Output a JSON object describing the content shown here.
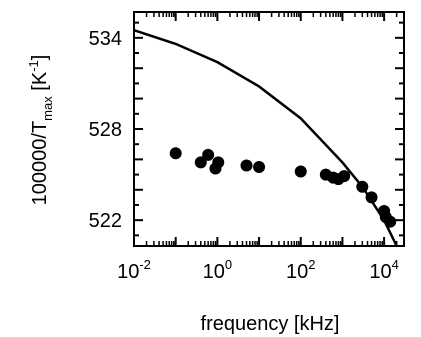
{
  "chart_data": {
    "type": "scatter",
    "xlabel": "frequency [kHz]",
    "ylabel_main": "100000/T",
    "ylabel_sub": "max",
    "ylabel_unit_open": " [K",
    "ylabel_unit_sup": "-1",
    "ylabel_unit_close": "]",
    "xscale": "log",
    "xlim": [
      0.01,
      30000
    ],
    "ylim": [
      520.3,
      535.7
    ],
    "grid": false,
    "x_ticks": [
      {
        "value": 0.01,
        "base": "10",
        "exp": "-2"
      },
      {
        "value": 1,
        "base": "10",
        "exp": "0"
      },
      {
        "value": 100,
        "base": "10",
        "exp": "2"
      },
      {
        "value": 10000,
        "base": "10",
        "exp": "4"
      }
    ],
    "y_ticks": [
      {
        "value": 522,
        "label": "522"
      },
      {
        "value": 528,
        "label": "528"
      },
      {
        "value": 534,
        "label": "534"
      }
    ],
    "series": [
      {
        "kind": "points",
        "color": "#000000",
        "points": [
          {
            "x": 0.1,
            "y": 526.4
          },
          {
            "x": 0.4,
            "y": 525.8
          },
          {
            "x": 0.6,
            "y": 526.3
          },
          {
            "x": 0.9,
            "y": 525.4
          },
          {
            "x": 1.05,
            "y": 525.8
          },
          {
            "x": 5,
            "y": 525.6
          },
          {
            "x": 10,
            "y": 525.5
          },
          {
            "x": 100,
            "y": 525.2
          },
          {
            "x": 400,
            "y": 525.0
          },
          {
            "x": 600,
            "y": 524.8
          },
          {
            "x": 800,
            "y": 524.7
          },
          {
            "x": 1100,
            "y": 524.9
          },
          {
            "x": 3000,
            "y": 524.2
          },
          {
            "x": 5000,
            "y": 523.5
          },
          {
            "x": 10000,
            "y": 522.6
          },
          {
            "x": 11000,
            "y": 522.2
          },
          {
            "x": 14000,
            "y": 521.9
          }
        ]
      },
      {
        "kind": "line",
        "color": "#000000",
        "points": [
          {
            "x": 0.01,
            "y": 534.5
          },
          {
            "x": 0.1,
            "y": 533.6
          },
          {
            "x": 1,
            "y": 532.4
          },
          {
            "x": 10,
            "y": 530.8
          },
          {
            "x": 100,
            "y": 528.7
          },
          {
            "x": 1000,
            "y": 525.8
          },
          {
            "x": 3000,
            "y": 524.2
          },
          {
            "x": 10000,
            "y": 522.0
          },
          {
            "x": 20000,
            "y": 520.3
          }
        ]
      }
    ]
  }
}
